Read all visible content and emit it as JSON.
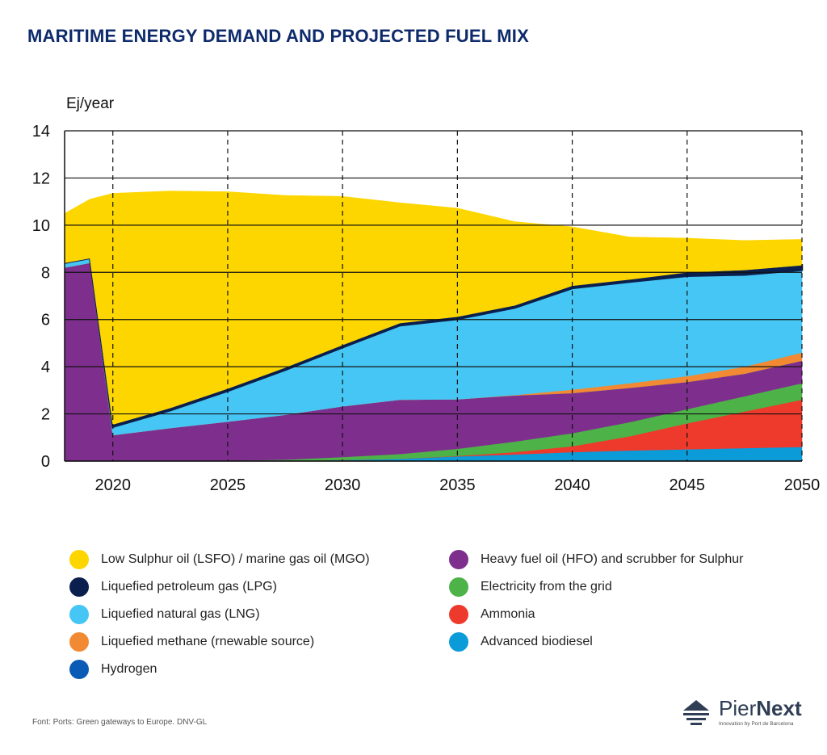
{
  "title": "MARITIME ENERGY DEMAND AND PROJECTED FUEL MIX",
  "chart_data": {
    "type": "area",
    "title": "MARITIME ENERGY DEMAND AND PROJECTED FUEL MIX",
    "ylabel": "Ej/year",
    "xlabel": "",
    "ylim": [
      0,
      14
    ],
    "xlim": [
      2017.9,
      2050
    ],
    "yticks": [
      0,
      2,
      4,
      6,
      8,
      10,
      12,
      14
    ],
    "xticks": [
      2020,
      2025,
      2030,
      2035,
      2040,
      2045,
      2050
    ],
    "ytick_labels": [
      "0",
      "2",
      "4",
      "6",
      "8",
      "10",
      "12",
      "14"
    ],
    "xtick_labels": [
      "2020",
      "2025",
      "2030",
      "2035",
      "2040",
      "2045",
      "2050"
    ],
    "grid": "horizontal solid lines, vertical dashed lines",
    "stacked": true,
    "x": [
      2017.9,
      2019.0,
      2020.0,
      2022.5,
      2025.0,
      2027.5,
      2030.0,
      2032.5,
      2035.0,
      2037.5,
      2040.0,
      2042.5,
      2045.0,
      2047.5,
      2050.0
    ],
    "series": [
      {
        "name": "Advanced biodiesel",
        "color": "#0a9bd8",
        "values": [
          0,
          0,
          0,
          0,
          0,
          0,
          0.05,
          0.1,
          0.2,
          0.28,
          0.38,
          0.45,
          0.5,
          0.55,
          0.6
        ]
      },
      {
        "name": "Ammonia",
        "color": "#ee3a2c",
        "values": [
          0,
          0,
          0,
          0,
          0,
          0,
          0,
          0,
          0.02,
          0.1,
          0.25,
          0.6,
          1.1,
          1.55,
          2.0
        ]
      },
      {
        "name": "Electricity from the grid",
        "color": "#4db248",
        "values": [
          0,
          0,
          0,
          0,
          0.02,
          0.06,
          0.12,
          0.2,
          0.3,
          0.45,
          0.55,
          0.6,
          0.6,
          0.65,
          0.7
        ]
      },
      {
        "name": "Heavy fuel oil (HFO) and scrubber for Sulphur",
        "color": "#7e2f8e",
        "values": [
          8.2,
          8.4,
          1.1,
          1.4,
          1.65,
          1.9,
          2.15,
          2.3,
          2.1,
          1.95,
          1.7,
          1.45,
          1.15,
          0.95,
          0.95
        ]
      },
      {
        "name": "Hydrogen",
        "color": "#0a5bb5",
        "values": [
          0,
          0,
          0,
          0,
          0,
          0,
          0,
          0,
          0,
          0,
          0,
          0,
          0,
          0,
          0
        ]
      },
      {
        "name": "Liquefied methane (rnewable source)",
        "color": "#f18a32",
        "values": [
          0,
          0,
          0,
          0,
          0,
          0,
          0,
          0,
          0,
          0.02,
          0.15,
          0.2,
          0.25,
          0.3,
          0.35
        ]
      },
      {
        "name": "Liquefied natural gas (LNG)",
        "color": "#46c6f4",
        "values": [
          0.2,
          0.2,
          0.35,
          0.75,
          1.3,
          1.9,
          2.5,
          3.15,
          3.4,
          3.7,
          4.3,
          4.3,
          4.25,
          3.9,
          3.5
        ]
      },
      {
        "name": "Liquefied petroleum gas (LPG)",
        "color": "#0b1f4f",
        "values": [
          0,
          0,
          0.1,
          0.1,
          0.1,
          0.1,
          0.1,
          0.1,
          0.1,
          0.1,
          0.1,
          0.1,
          0.15,
          0.2,
          0.2
        ]
      },
      {
        "name": "Low Sulphur oil (LSFO) / marine gas oil (MGO)",
        "color": "#fdd600",
        "values": [
          2.1,
          2.5,
          9.8,
          9.2,
          8.35,
          7.3,
          6.3,
          5.1,
          4.6,
          3.55,
          2.5,
          1.8,
          1.45,
          1.25,
          1.1
        ]
      }
    ],
    "legend_placement": "bottom, two columns"
  },
  "legend": {
    "left": [
      {
        "label": "Low Sulphur oil (LSFO) / marine gas oil (MGO)",
        "color": "#fdd600"
      },
      {
        "label": "Liquefied petroleum gas (LPG)",
        "color": "#0b1f4f"
      },
      {
        "label": "Liquefied natural gas (LNG)",
        "color": "#46c6f4"
      },
      {
        "label": "Liquefied methane (rnewable source)",
        "color": "#f18a32"
      },
      {
        "label": "Hydrogen",
        "color": "#0a5bb5"
      }
    ],
    "right": [
      {
        "label": "Heavy fuel oil (HFO) and scrubber for Sulphur",
        "color": "#7e2f8e"
      },
      {
        "label": "Electricity from the grid",
        "color": "#4db248"
      },
      {
        "label": "Ammonia",
        "color": "#ee3a2c"
      },
      {
        "label": "Advanced biodiesel",
        "color": "#0a9bd8"
      }
    ]
  },
  "source": "Font: Ports: Green gateways to Europe. DNV-GL",
  "logo": {
    "name_regular": "Pier",
    "name_bold": "Next",
    "tagline": "Innovation by Port de Barcelona",
    "color": "#2f3e55"
  }
}
